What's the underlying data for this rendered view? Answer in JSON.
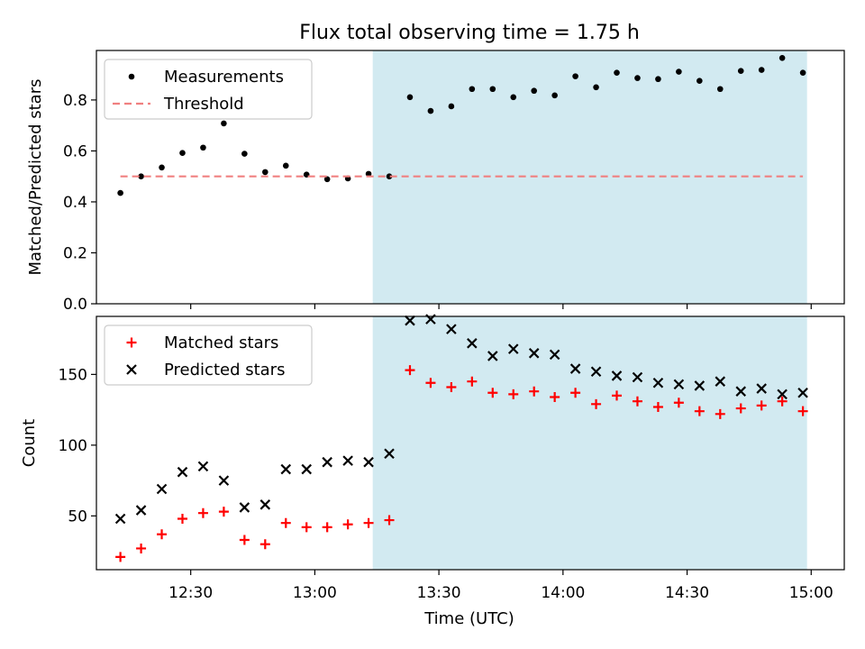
{
  "chart_data": {
    "title": "Flux total observing time = 1.75 h",
    "xlabel": "Time (UTC)",
    "x_ticks": [
      "12:30",
      "13:00",
      "13:30",
      "14:00",
      "14:30",
      "15:00"
    ],
    "x_tick_minutes": [
      750,
      780,
      810,
      840,
      870,
      900
    ],
    "xlim_minutes": [
      727.2,
      908
    ],
    "shaded_span_minutes": [
      794,
      899
    ],
    "shade_color": "#add8e6",
    "panels": [
      {
        "type": "scatter",
        "ylabel": "Matched/Predicted stars",
        "ylim": [
          0,
          0.9943
        ],
        "y_ticks": [
          "0.0",
          "0.2",
          "0.4",
          "0.6",
          "0.8"
        ],
        "y_tick_values": [
          0,
          0.2,
          0.4,
          0.6,
          0.8
        ],
        "legend_position": "upper-left",
        "series": [
          {
            "name": "Measurements",
            "marker": "dot",
            "color": "#000000",
            "x_minutes": [
              733,
              738,
              743,
              748,
              753,
              758,
              763,
              768,
              773,
              778,
              783,
              788,
              793,
              798,
              803,
              808,
              813,
              818,
              823,
              828,
              833,
              838,
              843,
              848,
              853,
              858,
              863,
              868,
              873,
              878,
              883,
              888,
              893,
              898
            ],
            "values": [
              0.435,
              0.5,
              0.535,
              0.592,
              0.613,
              0.708,
              0.589,
              0.517,
              0.542,
              0.507,
              0.489,
              0.492,
              0.51,
              0.5,
              0.811,
              0.757,
              0.775,
              0.843,
              0.843,
              0.811,
              0.836,
              0.818,
              0.893,
              0.85,
              0.907,
              0.886,
              0.882,
              0.911,
              0.875,
              0.843,
              0.914,
              0.918,
              0.965,
              0.907
            ]
          },
          {
            "name": "Threshold",
            "marker": "dashed-line",
            "color": "#f08080",
            "x_minutes": [
              733,
              898
            ],
            "values": [
              0.5,
              0.5
            ]
          }
        ]
      },
      {
        "type": "scatter",
        "ylabel": "Count",
        "ylim": [
          12,
          191
        ],
        "y_ticks": [
          "50",
          "100",
          "150"
        ],
        "y_tick_values": [
          50,
          100,
          150
        ],
        "legend_position": "upper-left",
        "series": [
          {
            "name": "Matched stars",
            "marker": "plus",
            "color": "#ff0000",
            "x_minutes": [
              733,
              738,
              743,
              748,
              753,
              758,
              763,
              768,
              773,
              778,
              783,
              788,
              793,
              798,
              803,
              808,
              813,
              818,
              823,
              828,
              833,
              838,
              843,
              848,
              853,
              858,
              863,
              868,
              873,
              878,
              883,
              888,
              893,
              898
            ],
            "values": [
              21,
              27,
              37,
              48,
              52,
              53,
              33,
              30,
              45,
              42,
              42,
              44,
              45,
              47,
              153,
              144,
              141,
              145,
              137,
              136,
              138,
              134,
              137,
              129,
              135,
              131,
              127,
              130,
              124,
              122,
              126,
              128,
              131,
              124
            ]
          },
          {
            "name": "Predicted stars",
            "marker": "x",
            "color": "#000000",
            "x_minutes": [
              733,
              738,
              743,
              748,
              753,
              758,
              763,
              768,
              773,
              778,
              783,
              788,
              793,
              798,
              803,
              808,
              813,
              818,
              823,
              828,
              833,
              838,
              843,
              848,
              853,
              858,
              863,
              868,
              873,
              878,
              883,
              888,
              893,
              898
            ],
            "values": [
              48,
              54,
              69,
              81,
              85,
              75,
              56,
              58,
              83,
              83,
              88,
              89,
              88,
              94,
              188,
              189,
              182,
              172,
              163,
              168,
              165,
              164,
              154,
              152,
              149,
              148,
              144,
              143,
              142,
              145,
              138,
              140,
              136,
              137
            ]
          }
        ]
      }
    ]
  }
}
